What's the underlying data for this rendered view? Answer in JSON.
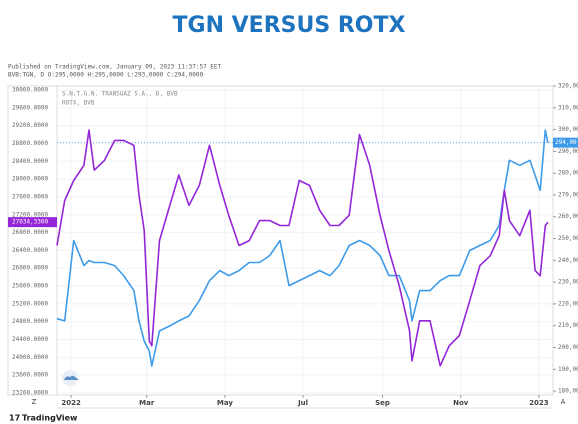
{
  "chart_data": {
    "type": "line",
    "title": "TGN VERSUS ROTX",
    "published": "Published on TradingView.com, January 09, 2023 11:37:57 EET",
    "ohlc": "BVB:TGN, D O:295,0000 H:295,0000 L:293,0000 C:294,0000",
    "x": [
      -11,
      -5,
      2,
      10,
      14,
      18,
      26,
      34,
      41,
      49,
      53,
      57,
      61,
      63,
      69,
      77,
      84,
      92,
      100,
      108,
      116,
      123,
      131,
      139,
      147,
      155,
      163,
      170,
      178,
      186,
      194,
      202,
      209,
      217,
      225,
      233,
      241,
      248,
      256,
      264,
      266,
      272,
      280,
      288,
      295,
      303,
      311,
      319,
      327,
      334,
      338,
      342,
      350,
      358,
      362,
      366,
      370,
      372
    ],
    "xlim": [
      -11,
      376
    ],
    "xticks": [
      {
        "value": 0,
        "label": "2022"
      },
      {
        "value": 59,
        "label": "Mar"
      },
      {
        "value": 120,
        "label": "May"
      },
      {
        "value": 181,
        "label": "Jul"
      },
      {
        "value": 243,
        "label": "Sep"
      },
      {
        "value": 304,
        "label": "Nov"
      },
      {
        "value": 365,
        "label": "2023"
      }
    ],
    "ylim": [
      23155,
      30090
    ],
    "yticks": [
      {
        "value": 23200,
        "label": "23200.0000"
      },
      {
        "value": 23600,
        "label": "23600.0000"
      },
      {
        "value": 24000,
        "label": "24000.0000"
      },
      {
        "value": 24400,
        "label": "24400.0000"
      },
      {
        "value": 24800,
        "label": "24800.0000"
      },
      {
        "value": 25200,
        "label": "25200.0000"
      },
      {
        "value": 25600,
        "label": "25600.0000"
      },
      {
        "value": 26000,
        "label": "26000.0000"
      },
      {
        "value": 26400,
        "label": "26400.0000"
      },
      {
        "value": 26800,
        "label": "26800.0000"
      },
      {
        "value": 27200,
        "label": "27200.0000"
      },
      {
        "value": 27600,
        "label": "27600.0000"
      },
      {
        "value": 28000,
        "label": "28000.0000"
      },
      {
        "value": 28400,
        "label": "28400.0000"
      },
      {
        "value": 28800,
        "label": "28800.0000"
      },
      {
        "value": 29200,
        "label": "29200.0000"
      },
      {
        "value": 29600,
        "label": "29600.0000"
      },
      {
        "value": 30000,
        "label": "30000.0000"
      }
    ],
    "y2lim": [
      178.2,
      320
    ],
    "y2ticks": [
      {
        "value": 180,
        "label": "180,00"
      },
      {
        "value": 190,
        "label": "190,00"
      },
      {
        "value": 200,
        "label": "200,00"
      },
      {
        "value": 210,
        "label": "210,00"
      },
      {
        "value": 220,
        "label": "220,00"
      },
      {
        "value": 230,
        "label": "230,00"
      },
      {
        "value": 240,
        "label": "240,00"
      },
      {
        "value": 250,
        "label": "250,00"
      },
      {
        "value": 260,
        "label": "260,00"
      },
      {
        "value": 270,
        "label": "270,00"
      },
      {
        "value": 280,
        "label": "280,00"
      },
      {
        "value": 290,
        "label": "290,00"
      },
      {
        "value": 300,
        "label": "300,00"
      },
      {
        "value": 310,
        "label": "310,00"
      },
      {
        "value": 320,
        "label": "320,00"
      }
    ],
    "grid": true,
    "series": [
      {
        "name": "S.N.T.G.N. TRANSGAZ S.A., D, BVB",
        "color": "#3d9be9",
        "axis": "y2",
        "last_label": "294,00",
        "values": [
          213.2,
          212.2,
          249.1,
          237.6,
          239.9,
          239.0,
          239.0,
          237.6,
          233.0,
          226.1,
          212.2,
          203.0,
          198.4,
          191.5,
          207.6,
          209.9,
          212.2,
          214.5,
          221.5,
          230.7,
          235.3,
          233.0,
          235.3,
          239.0,
          239.0,
          242.2,
          249.1,
          228.4,
          230.7,
          233.0,
          235.3,
          233.0,
          237.6,
          246.8,
          249.1,
          246.8,
          242.2,
          233.0,
          233.0,
          221.5,
          212.2,
          226.1,
          226.1,
          230.7,
          233.0,
          233.0,
          244.5,
          246.8,
          249.1,
          256.0,
          272.1,
          285.9,
          283.6,
          285.9,
          279.0,
          272.1,
          299.7,
          294
        ]
      },
      {
        "name": "ROTX, BVB",
        "color": "#9426d8",
        "last_label": "27034,3300",
        "values": [
          26510,
          27520,
          27970,
          28310,
          29100,
          28200,
          28420,
          28870,
          28870,
          28760,
          27640,
          26850,
          24370,
          24260,
          26620,
          27410,
          28090,
          27410,
          27860,
          28760,
          27860,
          27190,
          26510,
          26620,
          27070,
          27070,
          26960,
          26960,
          27970,
          27860,
          27300,
          26960,
          26960,
          27190,
          29000,
          28310,
          27190,
          26400,
          25610,
          24600,
          23920,
          24820,
          24820,
          23810,
          24260,
          24490,
          25270,
          26060,
          26280,
          26730,
          27750,
          27070,
          26730,
          27300,
          25950,
          25830,
          26960,
          27034.33
        ]
      }
    ]
  },
  "buttons": [
    "Z",
    "A"
  ],
  "footer": "TradingView"
}
